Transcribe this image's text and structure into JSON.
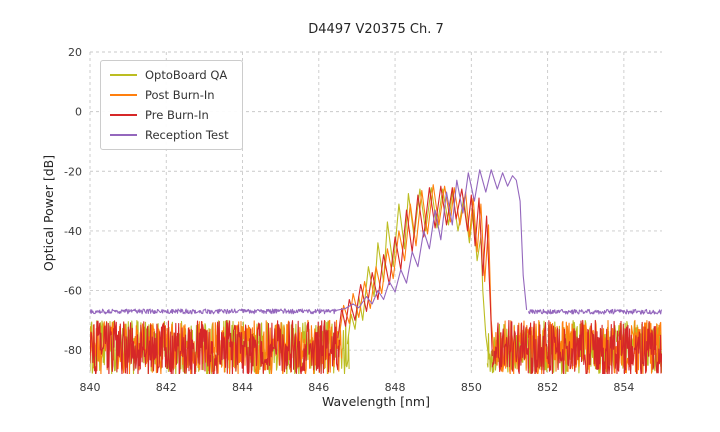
{
  "figure": {
    "title": "D4497 V20375 Ch. 7",
    "xlabel": "Wavelength [nm]",
    "ylabel": "Optical Power [dB]"
  },
  "chart_data": {
    "type": "line",
    "title": "D4497 V20375 Ch. 7",
    "xlabel": "Wavelength [nm]",
    "ylabel": "Optical Power [dB]",
    "xlim": [
      840,
      855
    ],
    "ylim": [
      -88,
      20
    ],
    "xticks": [
      840,
      842,
      844,
      846,
      848,
      850,
      852,
      854
    ],
    "yticks": [
      20,
      0,
      -20,
      -40,
      -60,
      -80
    ],
    "grid": true,
    "grid_color": "#c9c9c9",
    "background": "#ffffff",
    "text_color": "#262626",
    "legend_position": "upper left",
    "series": [
      {
        "name": "OptoBoard QA",
        "color": "#bcbd22",
        "noise": [
          {
            "x": [
              840,
              846.8
            ],
            "y": [
              -88.5,
              -70
            ]
          },
          {
            "x": [
              850.42,
              855
            ],
            "y": [
              -88.5,
              -70
            ]
          }
        ],
        "points": [
          [
            846.75,
            -78
          ],
          [
            846.85,
            -68
          ],
          [
            846.95,
            -73
          ],
          [
            847.05,
            -62
          ],
          [
            847.15,
            -70
          ],
          [
            847.3,
            -52
          ],
          [
            847.45,
            -62
          ],
          [
            847.55,
            -44
          ],
          [
            847.7,
            -57
          ],
          [
            847.8,
            -37
          ],
          [
            847.95,
            -52
          ],
          [
            848.1,
            -31
          ],
          [
            848.25,
            -46
          ],
          [
            848.35,
            -27.5
          ],
          [
            848.5,
            -42
          ],
          [
            848.65,
            -26
          ],
          [
            848.8,
            -40
          ],
          [
            848.95,
            -25.5
          ],
          [
            849.1,
            -39
          ],
          [
            849.25,
            -26
          ],
          [
            849.4,
            -38
          ],
          [
            849.5,
            -27
          ],
          [
            849.65,
            -40
          ],
          [
            849.8,
            -29
          ],
          [
            849.95,
            -44
          ],
          [
            850.05,
            -33
          ],
          [
            850.15,
            -50
          ],
          [
            850.25,
            -42
          ],
          [
            850.3,
            -60
          ],
          [
            850.38,
            -75
          ],
          [
            850.45,
            -82
          ]
        ]
      },
      {
        "name": "Post Burn-In",
        "color": "#ff7f0e",
        "noise": [
          {
            "x": [
              840,
              846.6
            ],
            "y": [
              -88.5,
              -70
            ]
          },
          {
            "x": [
              850.6,
              855
            ],
            "y": [
              -88.5,
              -70
            ]
          }
        ],
        "points": [
          [
            846.55,
            -74
          ],
          [
            846.65,
            -65
          ],
          [
            846.8,
            -71
          ],
          [
            846.9,
            -61
          ],
          [
            847.05,
            -69
          ],
          [
            847.2,
            -57
          ],
          [
            847.35,
            -66
          ],
          [
            847.5,
            -52
          ],
          [
            847.65,
            -61
          ],
          [
            847.8,
            -46
          ],
          [
            847.95,
            -56
          ],
          [
            848.1,
            -40
          ],
          [
            848.25,
            -50
          ],
          [
            848.4,
            -31
          ],
          [
            848.55,
            -45
          ],
          [
            848.7,
            -26.5
          ],
          [
            848.85,
            -41
          ],
          [
            849.0,
            -24.5
          ],
          [
            849.15,
            -38
          ],
          [
            849.3,
            -25
          ],
          [
            849.45,
            -37
          ],
          [
            849.55,
            -25.5
          ],
          [
            849.7,
            -38
          ],
          [
            849.85,
            -27
          ],
          [
            849.95,
            -42
          ],
          [
            850.05,
            -29
          ],
          [
            850.15,
            -47
          ],
          [
            850.25,
            -31
          ],
          [
            850.35,
            -57
          ],
          [
            850.45,
            -38
          ],
          [
            850.52,
            -70
          ],
          [
            850.6,
            -82
          ]
        ]
      },
      {
        "name": "Pre Burn-In",
        "color": "#d62728",
        "noise": [
          {
            "x": [
              840,
              846.55
            ],
            "y": [
              -88.5,
              -70
            ]
          },
          {
            "x": [
              850.55,
              855
            ],
            "y": [
              -88.5,
              -70
            ]
          }
        ],
        "points": [
          [
            846.5,
            -76
          ],
          [
            846.6,
            -66
          ],
          [
            846.7,
            -72
          ],
          [
            846.8,
            -63
          ],
          [
            846.95,
            -70
          ],
          [
            847.1,
            -58
          ],
          [
            847.25,
            -67
          ],
          [
            847.4,
            -54
          ],
          [
            847.55,
            -63
          ],
          [
            847.7,
            -48
          ],
          [
            847.85,
            -58
          ],
          [
            848.0,
            -42
          ],
          [
            848.15,
            -53
          ],
          [
            848.3,
            -33
          ],
          [
            848.45,
            -47
          ],
          [
            848.6,
            -28
          ],
          [
            848.75,
            -42
          ],
          [
            848.9,
            -25.5
          ],
          [
            849.05,
            -39
          ],
          [
            849.2,
            -25
          ],
          [
            849.35,
            -38
          ],
          [
            849.5,
            -25.5
          ],
          [
            849.6,
            -36
          ],
          [
            849.75,
            -26
          ],
          [
            849.9,
            -40
          ],
          [
            850.0,
            -28
          ],
          [
            850.1,
            -45
          ],
          [
            850.2,
            -29
          ],
          [
            850.3,
            -55
          ],
          [
            850.4,
            -35
          ],
          [
            850.5,
            -65
          ],
          [
            850.55,
            -82
          ]
        ]
      },
      {
        "name": "Reception Test",
        "color": "#9467bd",
        "noise": [
          {
            "x": [
              840,
              846.45
            ],
            "y": [
              -67.8,
              -66.2
            ]
          },
          {
            "x": [
              851.5,
              855
            ],
            "y": [
              -67.9,
              -66.3
            ]
          }
        ],
        "points": [
          [
            846.4,
            -66.8
          ],
          [
            846.7,
            -66
          ],
          [
            846.9,
            -64.5
          ],
          [
            847.05,
            -65.8
          ],
          [
            847.25,
            -62
          ],
          [
            847.4,
            -64.5
          ],
          [
            847.55,
            -60
          ],
          [
            847.7,
            -63
          ],
          [
            847.85,
            -57
          ],
          [
            848.0,
            -60.5
          ],
          [
            848.15,
            -53
          ],
          [
            848.3,
            -57.5
          ],
          [
            848.45,
            -47
          ],
          [
            848.6,
            -52
          ],
          [
            848.75,
            -40
          ],
          [
            848.9,
            -46
          ],
          [
            849.05,
            -33
          ],
          [
            849.2,
            -43
          ],
          [
            849.35,
            -27
          ],
          [
            849.5,
            -38
          ],
          [
            849.62,
            -23
          ],
          [
            849.78,
            -34
          ],
          [
            849.92,
            -20.5
          ],
          [
            850.08,
            -30
          ],
          [
            850.22,
            -19.5
          ],
          [
            850.38,
            -27
          ],
          [
            850.52,
            -19.5
          ],
          [
            850.68,
            -26
          ],
          [
            850.82,
            -20.5
          ],
          [
            850.95,
            -25
          ],
          [
            851.08,
            -21.5
          ],
          [
            851.18,
            -23
          ],
          [
            851.28,
            -30
          ],
          [
            851.36,
            -55
          ],
          [
            851.45,
            -66.5
          ]
        ]
      }
    ]
  }
}
